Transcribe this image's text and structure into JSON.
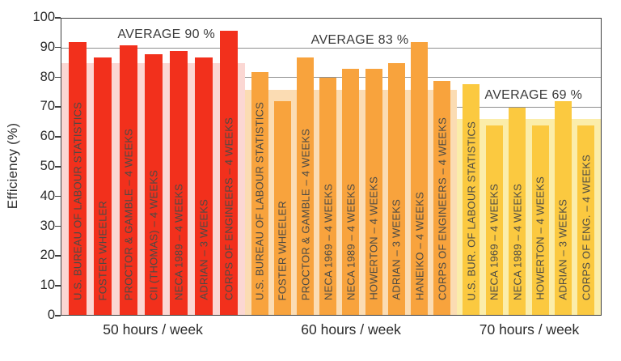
{
  "chart_data": {
    "type": "bar",
    "title": "",
    "ylabel": "Efficiency (%)",
    "xlabel": "",
    "ylim": [
      0,
      100
    ],
    "y_ticks": [
      0,
      10,
      20,
      30,
      40,
      50,
      60,
      70,
      80,
      90,
      100
    ],
    "grid": "horizontal",
    "legend": "none",
    "groups": [
      {
        "label": "50 hours / week",
        "annotation": "AVERAGE 90 %",
        "average": 90,
        "bar_color": "#f2301c",
        "band_color": "#fbd7d3",
        "band_value": 85,
        "bars": [
          {
            "name": "U.S. BUREAU OF LABOUR STATISTICS",
            "value": 92
          },
          {
            "name": "FOSTER WHEELER",
            "value": 87
          },
          {
            "name": "PROCTOR & GAMBLE – 4 WEEKS",
            "value": 91
          },
          {
            "name": "CII (THOMAS) – 4 WEEKS",
            "value": 88
          },
          {
            "name": "NECA 1989 – 4 WEEKS",
            "value": 89
          },
          {
            "name": "ADRIAN – 3 WEEKS",
            "value": 87
          },
          {
            "name": "CORPS OF ENGINEERS – 4 WEEKS",
            "value": 96
          }
        ]
      },
      {
        "label": "60 hours / week",
        "annotation": "AVERAGE 83 %",
        "average": 83,
        "bar_color": "#f8a33d",
        "band_color": "#fbdcb3",
        "band_value": 76,
        "bars": [
          {
            "name": "U.S. BUREAU OF LABOUR STATISTICS",
            "value": 82
          },
          {
            "name": "FOSTER WHEELER",
            "value": 72
          },
          {
            "name": "PROCTOR & GAMBLE – 4 WEEKS",
            "value": 87
          },
          {
            "name": "NECA 1969 – 4 WEEKS",
            "value": 80
          },
          {
            "name": "NECA 1989 – 4 WEEKS",
            "value": 83
          },
          {
            "name": "HOWERTON – 4 WEEKS",
            "value": 83
          },
          {
            "name": "ADRIAN – 3 WEEKS",
            "value": 85
          },
          {
            "name": "HANEIKO – 4 WEEKS",
            "value": 92
          },
          {
            "name": "CORPS OF ENGINEERS – 4 WEEKS",
            "value": 79
          }
        ]
      },
      {
        "label": "70 hours / week",
        "annotation": "AVERAGE 69 %",
        "average": 69,
        "bar_color": "#fbc940",
        "band_color": "#fbedaa",
        "band_value": 66,
        "bars": [
          {
            "name": "U.S. BUR. OF LABOUR STATISTICS",
            "value": 78
          },
          {
            "name": "NECA 1969 – 4 WEEKS",
            "value": 64
          },
          {
            "name": "NECA 1989 – 4 WEEKS",
            "value": 70
          },
          {
            "name": "HOWERTON – 4 WEEKS",
            "value": 64
          },
          {
            "name": "ADRIAN – 3 WEEKS",
            "value": 72
          },
          {
            "name": "CORPS OF ENG. – 4 WEEKS",
            "value": 64
          }
        ]
      }
    ]
  }
}
